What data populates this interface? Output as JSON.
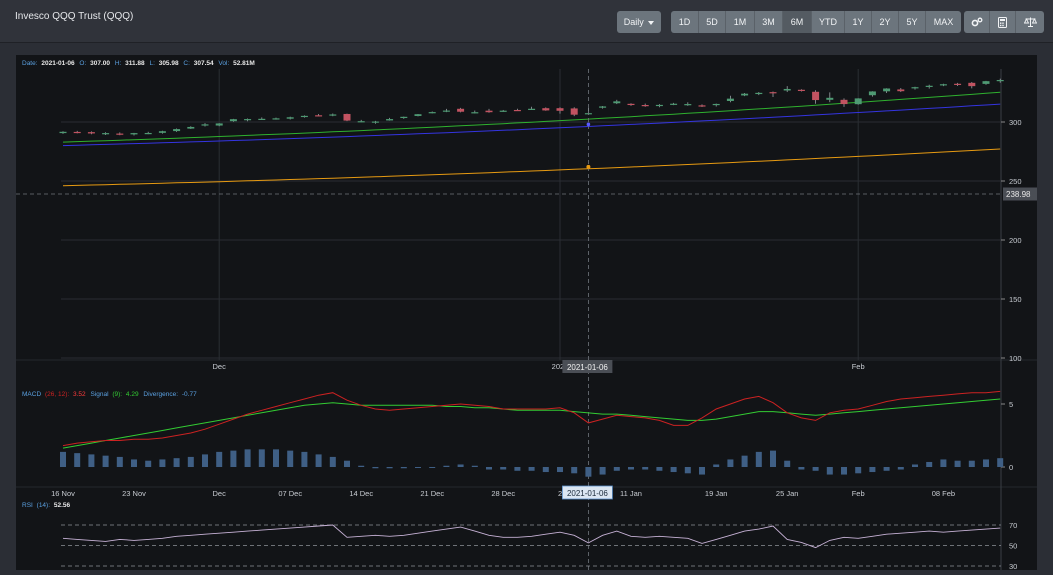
{
  "header": {
    "title": "Invesco QQQ Trust (QQQ)",
    "interval_label": "Daily",
    "ranges": [
      "1D",
      "5D",
      "1M",
      "3M",
      "6M",
      "YTD",
      "1Y",
      "2Y",
      "5Y",
      "MAX"
    ],
    "active_range": "6M",
    "tool_icons": [
      "gears-icon",
      "calculator-icon",
      "scale-icon"
    ]
  },
  "ohlc": {
    "date_label": "Date:",
    "date": "2021-01-06",
    "o_label": "O:",
    "o": "307.00",
    "h_label": "H:",
    "h": "311.88",
    "l_label": "L:",
    "l": "305.98",
    "c_label": "C:",
    "c": "307.54",
    "vol_label": "Vol:",
    "vol": "52.81M"
  },
  "crosshair": {
    "date": "2021-01-06",
    "price": "238.98",
    "price_value": 238.98
  },
  "macd_legend": {
    "name": "MACD",
    "params": "(26, 12):",
    "value": "3.52",
    "signal_name": "Signal",
    "signal_params": "(9):",
    "signal_value": "4.29",
    "div_name": "Divergence:",
    "div_value": "-0.77"
  },
  "rsi_legend": {
    "name": "RSI",
    "params": "(14):",
    "value": "52.56"
  },
  "colors": {
    "up": "#4e9a73",
    "down": "#c25361",
    "ma_green": "#2fb12f",
    "ma_blue": "#3434e0",
    "ma_orange": "#e69a12",
    "macd": "#cc2222",
    "signal": "#33cc33",
    "hist": "#3f5f85",
    "rsi": "#c7b2d6"
  },
  "chart_data": [
    {
      "type": "candlestick",
      "title": "",
      "yticks": [
        100,
        150,
        200,
        250,
        300
      ],
      "ylim": [
        98,
        336
      ],
      "x_month_labels": [
        "Dec",
        "2021",
        "Feb"
      ],
      "candles": [
        [
          290.6,
          292.2,
          289.9,
          291.7
        ],
        [
          291.6,
          292.5,
          290.4,
          291.1
        ],
        [
          291.4,
          292.1,
          289.6,
          290.3
        ],
        [
          290.1,
          291.3,
          289.0,
          290.6
        ],
        [
          290.2,
          291.2,
          288.8,
          289.5
        ],
        [
          289.5,
          290.8,
          288.6,
          290.6
        ],
        [
          290.6,
          291.7,
          289.7,
          290.7
        ],
        [
          290.8,
          292.6,
          290.1,
          292.2
        ],
        [
          292.3,
          294.5,
          291.6,
          294.0
        ],
        [
          294.4,
          296.4,
          294.1,
          295.8
        ],
        [
          297.8,
          299.0,
          296.2,
          298.0
        ],
        [
          297.0,
          299.0,
          296.4,
          298.8
        ],
        [
          300.7,
          302.6,
          300.2,
          302.4
        ],
        [
          301.5,
          303.0,
          300.6,
          302.5
        ],
        [
          302.6,
          303.9,
          301.9,
          302.7
        ],
        [
          302.8,
          303.7,
          302.0,
          303.1
        ],
        [
          302.8,
          304.5,
          302.1,
          304.0
        ],
        [
          304.5,
          305.6,
          303.7,
          305.2
        ],
        [
          305.7,
          306.8,
          305.1,
          305.4
        ],
        [
          306.1,
          307.2,
          304.9,
          306.4
        ],
        [
          306.8,
          307.1,
          300.7,
          301.2
        ],
        [
          300.6,
          301.8,
          299.8,
          300.7
        ],
        [
          299.5,
          301.0,
          298.5,
          300.4
        ],
        [
          301.3,
          303.5,
          301.2,
          302.5
        ],
        [
          304.1,
          304.6,
          302.7,
          304.4
        ],
        [
          305.1,
          306.8,
          304.8,
          306.6
        ],
        [
          307.7,
          308.9,
          307.3,
          308.4
        ],
        [
          309.6,
          311.1,
          308.4,
          309.7
        ],
        [
          311.2,
          312.0,
          308.2,
          308.7
        ],
        [
          308.1,
          309.7,
          307.2,
          308.3
        ],
        [
          309.6,
          311.1,
          307.8,
          308.3
        ],
        [
          308.9,
          310.2,
          308.6,
          309.6
        ],
        [
          310.2,
          311.2,
          309.4,
          309.9
        ],
        [
          310.6,
          312.9,
          310.2,
          311.2
        ],
        [
          311.7,
          312.4,
          309.5,
          309.8
        ],
        [
          311.7,
          312.5,
          307.1,
          309.5
        ],
        [
          311.5,
          312.5,
          305.0,
          306.2
        ],
        [
          307.0,
          311.9,
          306.0,
          307.5
        ],
        [
          312.1,
          313.6,
          311.3,
          313.2
        ],
        [
          315.9,
          318.8,
          315.2,
          317.5
        ],
        [
          315.4,
          315.9,
          313.7,
          314.9
        ],
        [
          314.4,
          315.6,
          312.9,
          313.7
        ],
        [
          314.1,
          315.1,
          312.5,
          314.5
        ],
        [
          315.1,
          316.2,
          314.3,
          315.5
        ],
        [
          315.0,
          316.7,
          313.7,
          315.2
        ],
        [
          314.1,
          314.9,
          312.7,
          313.3
        ],
        [
          314.4,
          315.6,
          313.1,
          315.3
        ],
        [
          317.8,
          322.2,
          316.7,
          319.8
        ],
        [
          322.5,
          324.6,
          321.9,
          324.0
        ],
        [
          324.5,
          325.4,
          322.8,
          324.7
        ],
        [
          325.3,
          325.9,
          321.2,
          324.8
        ],
        [
          326.7,
          330.4,
          325.4,
          328.0
        ],
        [
          327.3,
          327.8,
          325.8,
          326.9
        ],
        [
          325.6,
          326.9,
          315.5,
          318.6
        ],
        [
          318.8,
          325.1,
          316.8,
          320.5
        ],
        [
          318.8,
          320.0,
          312.8,
          315.2
        ],
        [
          315.1,
          320.1,
          314.7,
          320.0
        ],
        [
          322.7,
          326.1,
          321.5,
          325.9
        ],
        [
          326.0,
          328.6,
          324.6,
          328.4
        ],
        [
          327.6,
          328.8,
          325.4,
          326.1
        ],
        [
          328.5,
          329.9,
          327.4,
          329.5
        ],
        [
          330.2,
          331.6,
          328.3,
          330.7
        ],
        [
          331.5,
          332.4,
          330.4,
          332.0
        ],
        [
          332.4,
          333.2,
          330.5,
          332.3
        ],
        [
          333.2,
          333.9,
          328.5,
          330.4
        ],
        [
          332.3,
          334.8,
          331.6,
          334.6
        ],
        [
          334.8,
          336.7,
          333.3,
          335.6
        ]
      ],
      "ma_green_endpoints": [
        283,
        325
      ],
      "ma_blue_endpoints": [
        280,
        315
      ],
      "ma_orange_endpoints": [
        246,
        277
      ]
    },
    {
      "type": "line+bar",
      "title": "",
      "yticks": [
        0,
        5
      ],
      "ylim": [
        -1,
        6.2
      ],
      "macd_line": [
        1.7,
        1.9,
        2.0,
        2.1,
        2.1,
        2.2,
        2.2,
        2.3,
        2.5,
        2.7,
        3.0,
        3.4,
        3.8,
        4.2,
        4.5,
        4.8,
        5.1,
        5.4,
        5.7,
        5.9,
        5.3,
        4.9,
        4.6,
        4.5,
        4.6,
        4.7,
        4.8,
        4.9,
        5.0,
        4.9,
        4.8,
        4.6,
        4.6,
        4.6,
        4.6,
        4.7,
        4.3,
        3.5,
        3.8,
        4.1,
        4.0,
        3.9,
        3.7,
        3.3,
        3.3,
        3.9,
        4.6,
        5.0,
        5.4,
        5.6,
        5.1,
        4.3,
        3.9,
        3.7,
        4.3,
        4.5,
        4.6,
        4.9,
        5.2,
        5.4,
        5.5,
        5.6,
        5.7,
        5.8,
        5.9,
        5.9,
        6.0
      ],
      "signal_line": [
        1.5,
        1.7,
        1.9,
        2.1,
        2.3,
        2.5,
        2.7,
        2.9,
        3.1,
        3.3,
        3.5,
        3.7,
        3.9,
        4.1,
        4.3,
        4.5,
        4.7,
        4.9,
        5.0,
        5.1,
        5.0,
        4.9,
        4.9,
        4.9,
        4.9,
        4.9,
        4.9,
        4.8,
        4.8,
        4.7,
        4.7,
        4.6,
        4.5,
        4.5,
        4.5,
        4.5,
        4.4,
        4.29,
        4.2,
        4.2,
        4.1,
        4.0,
        3.9,
        3.8,
        3.7,
        3.7,
        3.8,
        4.0,
        4.2,
        4.4,
        4.4,
        4.3,
        4.2,
        4.1,
        4.2,
        4.3,
        4.4,
        4.5,
        4.6,
        4.7,
        4.8,
        4.9,
        5.0,
        5.1,
        5.2,
        5.3,
        5.4
      ],
      "histogram": [
        1.2,
        1.1,
        1.0,
        0.9,
        0.8,
        0.6,
        0.5,
        0.6,
        0.7,
        0.8,
        1.0,
        1.2,
        1.3,
        1.4,
        1.4,
        1.4,
        1.3,
        1.2,
        1.0,
        0.8,
        0.5,
        0.1,
        -0.1,
        -0.1,
        -0.1,
        0.0,
        0.0,
        0.1,
        0.2,
        0.1,
        -0.2,
        -0.2,
        -0.3,
        -0.3,
        -0.4,
        -0.4,
        -0.5,
        -0.77,
        -0.6,
        -0.3,
        -0.2,
        -0.2,
        -0.3,
        -0.4,
        -0.5,
        -0.6,
        0.2,
        0.6,
        0.9,
        1.2,
        1.3,
        0.5,
        -0.2,
        -0.3,
        -0.6,
        -0.6,
        -0.5,
        -0.4,
        -0.3,
        -0.2,
        0.2,
        0.4,
        0.6,
        0.5,
        0.5,
        0.6,
        0.7
      ],
      "x_date_labels": [
        "16 Nov",
        "23 Nov",
        "Dec",
        "07 Dec",
        "14 Dec",
        "21 Dec",
        "28 Dec",
        "202",
        "11 Jan",
        "19 Jan",
        "25 Jan",
        "Feb",
        "08 Feb"
      ]
    },
    {
      "type": "line",
      "title": "",
      "yticks": [
        30,
        50,
        70
      ],
      "ylim": [
        25,
        78
      ],
      "rsi_line": [
        57,
        56,
        55,
        54,
        56,
        55,
        56,
        57,
        59,
        60,
        61,
        62,
        63,
        64,
        65,
        66,
        67,
        68,
        69,
        70,
        58,
        59,
        60,
        59,
        60,
        62,
        64,
        66,
        68,
        64,
        60,
        58,
        58,
        59,
        61,
        63,
        60,
        52.56,
        60,
        64,
        59,
        58,
        59,
        58,
        57,
        52,
        56,
        60,
        64,
        66,
        69,
        56,
        53,
        48,
        55,
        58,
        57,
        59,
        61,
        62,
        63,
        64,
        63,
        64,
        65,
        66,
        67
      ]
    }
  ]
}
